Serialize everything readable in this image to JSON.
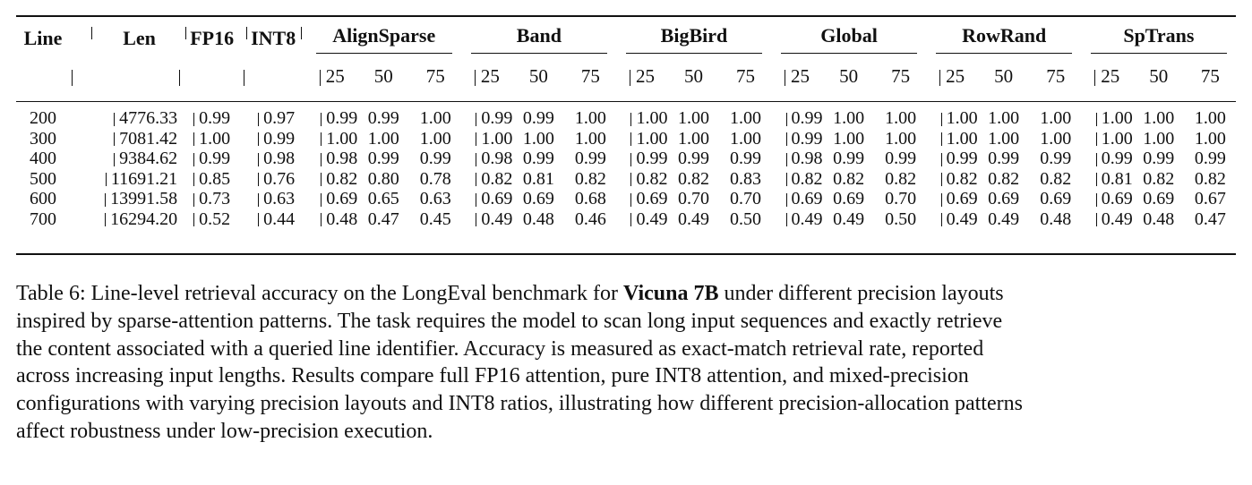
{
  "table": {
    "headers": {
      "line": "Line",
      "len": "Len",
      "fp16": "FP16",
      "int8": "INT8",
      "groups": [
        "AlignSparse",
        "Band",
        "BigBird",
        "Global",
        "RowRand",
        "SpTrans"
      ],
      "ratios": [
        "25",
        "50",
        "75"
      ]
    },
    "rows": [
      {
        "line": "200",
        "len": "4776.33",
        "fp16": "0.99",
        "int8": "0.97",
        "vals": [
          "0.99",
          "0.99",
          "1.00",
          "0.99",
          "0.99",
          "1.00",
          "1.00",
          "1.00",
          "1.00",
          "0.99",
          "1.00",
          "1.00",
          "1.00",
          "1.00",
          "1.00",
          "1.00",
          "1.00",
          "1.00"
        ]
      },
      {
        "line": "300",
        "len": "7081.42",
        "fp16": "1.00",
        "int8": "0.99",
        "vals": [
          "1.00",
          "1.00",
          "1.00",
          "1.00",
          "1.00",
          "1.00",
          "1.00",
          "1.00",
          "1.00",
          "0.99",
          "1.00",
          "1.00",
          "1.00",
          "1.00",
          "1.00",
          "1.00",
          "1.00",
          "1.00"
        ]
      },
      {
        "line": "400",
        "len": "9384.62",
        "fp16": "0.99",
        "int8": "0.98",
        "vals": [
          "0.98",
          "0.99",
          "0.99",
          "0.98",
          "0.99",
          "0.99",
          "0.99",
          "0.99",
          "0.99",
          "0.98",
          "0.99",
          "0.99",
          "0.99",
          "0.99",
          "0.99",
          "0.99",
          "0.99",
          "0.99"
        ]
      },
      {
        "line": "500",
        "len": "11691.21",
        "fp16": "0.85",
        "int8": "0.76",
        "vals": [
          "0.82",
          "0.80",
          "0.78",
          "0.82",
          "0.81",
          "0.82",
          "0.82",
          "0.82",
          "0.83",
          "0.82",
          "0.82",
          "0.82",
          "0.82",
          "0.82",
          "0.82",
          "0.81",
          "0.82",
          "0.82"
        ]
      },
      {
        "line": "600",
        "len": "13991.58",
        "fp16": "0.73",
        "int8": "0.63",
        "vals": [
          "0.69",
          "0.65",
          "0.63",
          "0.69",
          "0.69",
          "0.68",
          "0.69",
          "0.70",
          "0.70",
          "0.69",
          "0.69",
          "0.70",
          "0.69",
          "0.69",
          "0.69",
          "0.69",
          "0.69",
          "0.67"
        ]
      },
      {
        "line": "700",
        "len": "16294.20",
        "fp16": "0.52",
        "int8": "0.44",
        "vals": [
          "0.48",
          "0.47",
          "0.45",
          "0.49",
          "0.48",
          "0.46",
          "0.49",
          "0.49",
          "0.50",
          "0.49",
          "0.49",
          "0.50",
          "0.49",
          "0.49",
          "0.48",
          "0.49",
          "0.48",
          "0.47"
        ]
      }
    ]
  },
  "caption": {
    "label": "Table 6: Line-level retrieval accuracy on the LongEval benchmark for",
    "model": "Vicuna 7B",
    "line1_rest": "under different precision layouts",
    "line2": "inspired by sparse-attention patterns. The task requires the model to scan long input sequences and exactly retrieve",
    "line3": "the content associated with a queried line identifier. Accuracy is measured as exact-match retrieval rate, reported",
    "line4": "across increasing input lengths. Results compare full FP16 attention, pure INT8 attention, and mixed-precision",
    "line5": "configurations with varying precision layouts and INT8 ratios, illustrating how different precision-allocation patterns",
    "line6": "affect robustness under low-precision execution."
  }
}
